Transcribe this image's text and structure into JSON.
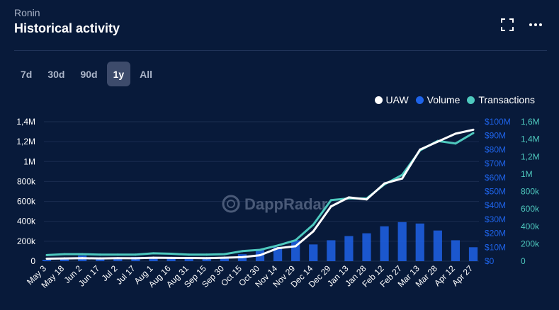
{
  "header": {
    "subtitle": "Ronin",
    "title": "Historical activity"
  },
  "icons": {
    "expand": "expand-icon",
    "more": "more-horizontal-icon"
  },
  "tabs": [
    {
      "label": "7d",
      "active": false
    },
    {
      "label": "30d",
      "active": false
    },
    {
      "label": "90d",
      "active": false
    },
    {
      "label": "1y",
      "active": true
    },
    {
      "label": "All",
      "active": false
    }
  ],
  "legend": [
    {
      "label": "UAW",
      "color": "#ffffff"
    },
    {
      "label": "Volume",
      "color": "#1e63e9"
    },
    {
      "label": "Transactions",
      "color": "#4ec9be"
    }
  ],
  "watermark": "DappRadar",
  "colors": {
    "background": "#081a3a",
    "uaw": "#ffffff",
    "volume": "#1e63e9",
    "transactions": "#4ec9be",
    "grid": "#1a2d50"
  },
  "chart_data": {
    "type": "line",
    "x_labels": [
      "May 3",
      "May 18",
      "Jun 2",
      "Jun 17",
      "Jul 2",
      "Jul 17",
      "Aug 1",
      "Aug 16",
      "Aug 31",
      "Sep 15",
      "Sep 30",
      "Oct 15",
      "Oct 30",
      "Nov 14",
      "Nov 29",
      "Dec 14",
      "Dec 29",
      "Jan 13",
      "Jan 28",
      "Feb 12",
      "Feb 27",
      "Mar 13",
      "Mar 28",
      "Apr 12",
      "Apr 27"
    ],
    "left_axis": {
      "ticks": [
        "0",
        "200k",
        "400k",
        "600k",
        "800k",
        "1M",
        "1,2M",
        "1,4M"
      ],
      "ylim": [
        0,
        1400000
      ]
    },
    "volume_axis": {
      "ticks": [
        "$0",
        "$10M",
        "$20M",
        "$30M",
        "$40M",
        "$50M",
        "$60M",
        "$70M",
        "$80M",
        "$90M",
        "$100M"
      ],
      "ylim": [
        0,
        100000000
      ]
    },
    "transactions_axis": {
      "ticks": [
        "0",
        "200k",
        "400k",
        "600k",
        "800k",
        "1M",
        "1,2M",
        "1,4M",
        "1,6M"
      ],
      "ylim": [
        0,
        1600000
      ]
    },
    "grid": true,
    "legend_position": "top-right",
    "series": [
      {
        "name": "UAW",
        "axis": "left",
        "values": [
          25000,
          28000,
          30000,
          28000,
          30000,
          29000,
          35000,
          33000,
          32000,
          30000,
          35000,
          40000,
          60000,
          130000,
          150000,
          300000,
          550000,
          640000,
          620000,
          780000,
          830000,
          1120000,
          1200000,
          1280000,
          1320000
        ]
      },
      {
        "name": "Transactions",
        "axis": "transactions",
        "values": [
          70000,
          80000,
          80000,
          75000,
          75000,
          75000,
          90000,
          85000,
          75000,
          75000,
          80000,
          115000,
          130000,
          180000,
          240000,
          420000,
          700000,
          720000,
          720000,
          880000,
          990000,
          1270000,
          1380000,
          1350000,
          1470000
        ]
      },
      {
        "name": "Volume",
        "axis": "volume",
        "type": "bar",
        "values": [
          1000000,
          2000000,
          4000000,
          2000000,
          2000000,
          3000000,
          2000000,
          2000000,
          2000000,
          2000000,
          3000000,
          5000000,
          8000000,
          10000000,
          15000000,
          12000000,
          15000000,
          18000000,
          20000000,
          25000000,
          28000000,
          27000000,
          22000000,
          15000000,
          10000000
        ]
      }
    ]
  }
}
